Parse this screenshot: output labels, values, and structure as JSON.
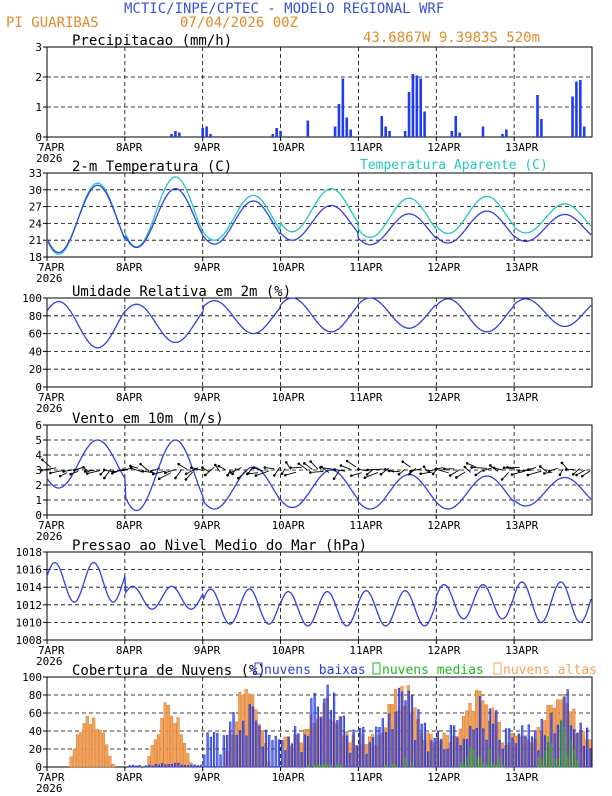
{
  "header": {
    "line1": "MCTIC/INPE/CPTEC - MODELO REGIONAL WRF",
    "station": "PI GUARIBAS",
    "run": "07/04/2026 00Z",
    "coords": "43.6867W 9.3983S 520m",
    "colors": {
      "blue": "#3a52d8",
      "orange": "#e08a2a",
      "cyan": "#20c8c0"
    }
  },
  "xaxis": {
    "days": [
      "7APR",
      "8APR",
      "9APR",
      "10APR",
      "11APR",
      "12APR",
      "13APR"
    ],
    "year": "2026"
  },
  "chart_data": [
    {
      "type": "bar",
      "title": "Precipitacao (mm/h)",
      "ylim": [
        0,
        3
      ],
      "yticks": [
        "0",
        "1",
        "2",
        "3"
      ],
      "color": "#1f3cf0",
      "events": [
        [
          1.6,
          0.1
        ],
        [
          1.65,
          0.2
        ],
        [
          1.7,
          0.15
        ],
        [
          2.0,
          0.3
        ],
        [
          2.05,
          0.35
        ],
        [
          2.1,
          0.1
        ],
        [
          2.9,
          0.1
        ],
        [
          2.95,
          0.3
        ],
        [
          3.0,
          0.2
        ],
        [
          3.35,
          0.55
        ],
        [
          3.7,
          0.35
        ],
        [
          3.75,
          1.1
        ],
        [
          3.8,
          1.95
        ],
        [
          3.85,
          0.65
        ],
        [
          3.9,
          0.25
        ],
        [
          4.3,
          0.7
        ],
        [
          4.35,
          0.35
        ],
        [
          4.4,
          0.2
        ],
        [
          4.6,
          0.2
        ],
        [
          4.65,
          1.5
        ],
        [
          4.7,
          2.1
        ],
        [
          4.75,
          2.05
        ],
        [
          4.8,
          1.95
        ],
        [
          4.85,
          0.85
        ],
        [
          5.2,
          0.2
        ],
        [
          5.25,
          0.7
        ],
        [
          5.3,
          0.15
        ],
        [
          5.6,
          0.35
        ],
        [
          5.85,
          0.1
        ],
        [
          5.9,
          0.25
        ],
        [
          6.3,
          1.4
        ],
        [
          6.35,
          0.6
        ],
        [
          6.75,
          1.35
        ],
        [
          6.8,
          1.85
        ],
        [
          6.85,
          1.9
        ],
        [
          6.9,
          0.35
        ]
      ]
    },
    {
      "type": "line",
      "title": "2-m Temperatura (C)",
      "legend": "Temperatura Aparente (C)",
      "ylim": [
        18,
        33
      ],
      "yticks": [
        "18",
        "21",
        "24",
        "27",
        "30",
        "33"
      ],
      "series": [
        {
          "name": "2-m Temperatura",
          "color": "#2f3fe0",
          "days": [
            {
              "min": 18.8,
              "max": 30.8
            },
            {
              "min": 19.7,
              "max": 30.2
            },
            {
              "min": 20.3,
              "max": 28.0
            },
            {
              "min": 21.0,
              "max": 27.2
            },
            {
              "min": 20.2,
              "max": 25.7
            },
            {
              "min": 20.5,
              "max": 26.2
            },
            {
              "min": 20.8,
              "max": 25.6
            }
          ]
        },
        {
          "name": "Temperatura Aparente",
          "color": "#20c8c0",
          "days": [
            {
              "min": 18.5,
              "max": 31.2
            },
            {
              "min": 19.8,
              "max": 32.3
            },
            {
              "min": 21.0,
              "max": 29.0
            },
            {
              "min": 22.5,
              "max": 30.2
            },
            {
              "min": 21.5,
              "max": 28.5
            },
            {
              "min": 22.2,
              "max": 28.8
            },
            {
              "min": 22.3,
              "max": 27.5
            }
          ]
        }
      ]
    },
    {
      "type": "line",
      "title": "Umidade Relativa em 2m (%)",
      "ylim": [
        0,
        100
      ],
      "yticks": [
        "0",
        "20",
        "40",
        "60",
        "80",
        "100"
      ],
      "series": [
        {
          "name": "Umidade Relativa",
          "color": "#2f3fe0",
          "days": [
            {
              "min": 44,
              "max": 96
            },
            {
              "min": 50,
              "max": 93
            },
            {
              "min": 60,
              "max": 97
            },
            {
              "min": 62,
              "max": 100
            },
            {
              "min": 66,
              "max": 100
            },
            {
              "min": 62,
              "max": 99
            },
            {
              "min": 68,
              "max": 99
            }
          ]
        }
      ]
    },
    {
      "type": "line",
      "title": "Vento em 10m (m/s)",
      "ylim": [
        0,
        6
      ],
      "yticks": [
        "0",
        "1",
        "2",
        "3",
        "4",
        "5",
        "6"
      ],
      "series": [
        {
          "name": "Vento em 10m",
          "color": "#2f3fe0",
          "days": [
            {
              "min": 1.8,
              "max": 5.0
            },
            {
              "min": 0.3,
              "max": 5.0
            },
            {
              "min": 0.4,
              "max": 3.2
            },
            {
              "min": 0.5,
              "max": 3.0
            },
            {
              "min": 0.4,
              "max": 2.7
            },
            {
              "min": 0.4,
              "max": 2.6
            },
            {
              "min": 0.6,
              "max": 2.5
            }
          ]
        }
      ],
      "vector_row_value": 3
    },
    {
      "type": "line",
      "title": "Pressao ao Nivel Medio do Mar (hPa)",
      "ylim": [
        1008,
        1018
      ],
      "yticks": [
        "1008",
        "1010",
        "1012",
        "1014",
        "1016",
        "1018"
      ],
      "series": [
        {
          "name": "Pressao",
          "color": "#2f3fe0",
          "days": [
            {
              "min": 1012.3,
              "max": 1016.8
            },
            {
              "min": 1011.5,
              "max": 1014.1
            },
            {
              "min": 1009.8,
              "max": 1013.8
            },
            {
              "min": 1009.6,
              "max": 1013.5
            },
            {
              "min": 1009.6,
              "max": 1013.6
            },
            {
              "min": 1010.4,
              "max": 1014.3
            },
            {
              "min": 1010.0,
              "max": 1014.6
            }
          ]
        }
      ]
    },
    {
      "type": "bar",
      "title": "Cobertura de Nuvens (%)",
      "ylim": [
        0,
        100
      ],
      "yticks": [
        "0",
        "20",
        "40",
        "60",
        "80",
        "100"
      ],
      "legend": [
        "nuvens baixas",
        "nuvens medias",
        "nuvens altas"
      ],
      "colors": {
        "baixas": "#2a3fe0",
        "medias": "#22b81e",
        "altas": "#f4a35a"
      },
      "altas_days": [
        60,
        75,
        95,
        92,
        100,
        95,
        100
      ],
      "baixas_days": [
        0,
        5,
        80,
        95,
        90,
        95,
        95
      ],
      "medias_days": [
        0,
        0,
        0,
        5,
        10,
        40,
        60
      ]
    }
  ]
}
